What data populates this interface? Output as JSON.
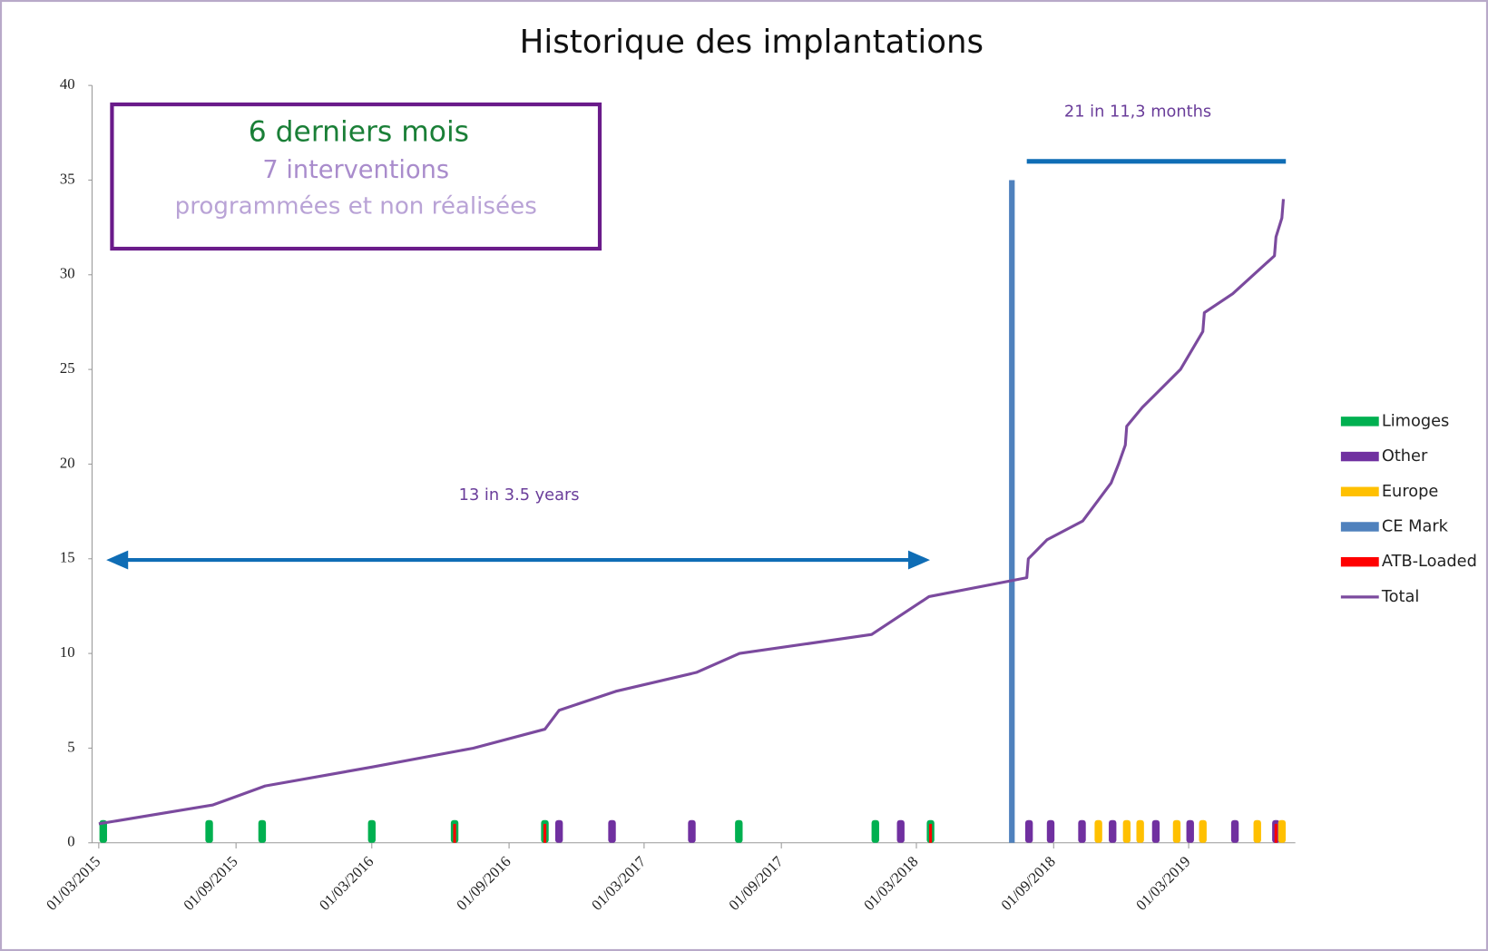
{
  "chart_data": {
    "type": "line",
    "title": "Historique des implantations",
    "xlim": [
      "2015-02-20",
      "2019-07-22"
    ],
    "ylim": [
      0,
      40
    ],
    "yticks": [
      0,
      5,
      10,
      15,
      20,
      25,
      30,
      35,
      40
    ],
    "xticks": [
      {
        "value": "2015-03-01",
        "label": "01/03/2015"
      },
      {
        "value": "2015-09-01",
        "label": "01/09/2015"
      },
      {
        "value": "2016-03-01",
        "label": "01/03/2016"
      },
      {
        "value": "2016-09-01",
        "label": "01/09/2016"
      },
      {
        "value": "2017-03-01",
        "label": "01/03/2017"
      },
      {
        "value": "2017-09-01",
        "label": "01/09/2017"
      },
      {
        "value": "2018-03-01",
        "label": "01/03/2018"
      },
      {
        "value": "2018-09-01",
        "label": "01/09/2018"
      },
      {
        "value": "2019-03-01",
        "label": "01/03/2019"
      }
    ],
    "legend": "right",
    "series": [
      {
        "name": "Limoges",
        "type": "event",
        "color": "#00b050",
        "x": [
          "2015-03-07",
          "2015-07-27",
          "2015-10-06",
          "2016-03-01",
          "2016-06-20",
          "2016-10-19",
          "2017-07-06",
          "2018-01-05",
          "2018-03-20"
        ],
        "values": [
          1,
          1,
          1,
          1,
          1,
          1,
          1,
          1,
          1
        ]
      },
      {
        "name": "Other",
        "type": "event",
        "color": "#7030a0",
        "x": [
          "2016-11-07",
          "2017-01-17",
          "2017-05-04",
          "2018-02-08",
          "2018-07-30",
          "2018-08-28",
          "2018-10-09",
          "2018-11-19",
          "2019-01-16",
          "2019-03-03",
          "2019-05-02",
          "2019-06-26"
        ],
        "values": [
          1,
          1,
          1,
          1,
          1,
          1,
          1,
          1,
          1,
          1,
          1,
          1
        ]
      },
      {
        "name": "Europe",
        "type": "event",
        "color": "#ffc000",
        "x": [
          "2018-10-31",
          "2018-12-08",
          "2018-12-26",
          "2019-02-13",
          "2019-03-20",
          "2019-06-01",
          "2019-07-04"
        ],
        "values": [
          1,
          1,
          1,
          1,
          1,
          1,
          1
        ]
      },
      {
        "name": "CE Mark",
        "type": "vline",
        "color": "#4f81bd",
        "x": [
          "2018-07-07"
        ],
        "values": [
          35
        ]
      },
      {
        "name": "ATB-Loaded",
        "type": "thin-event",
        "color": "#ff0000",
        "x": [
          "2016-06-20",
          "2016-10-19",
          "2018-03-20",
          "2019-06-26"
        ],
        "values": [
          1,
          1,
          1,
          1
        ]
      },
      {
        "name": "Total",
        "type": "line",
        "color": "#7b4a9e",
        "x": [
          "2015-03-01",
          "2015-08-01",
          "2015-10-10",
          "2016-03-01",
          "2016-07-15",
          "2016-10-19",
          "2016-11-07",
          "2017-01-22",
          "2017-05-10",
          "2017-07-07",
          "2017-12-31",
          "2018-03-18",
          "2018-07-27",
          "2018-07-29",
          "2018-08-23",
          "2018-10-10",
          "2018-11-17",
          "2018-11-27",
          "2018-12-06",
          "2018-12-08",
          "2018-12-29",
          "2019-02-18",
          "2019-03-20",
          "2019-03-22",
          "2019-04-29",
          "2019-06-24",
          "2019-06-26",
          "2019-07-04",
          "2019-07-06"
        ],
        "values": [
          1,
          2,
          3,
          4,
          5,
          6,
          7,
          8,
          9,
          10,
          11,
          13,
          14,
          15,
          16,
          17,
          19,
          20,
          21,
          22,
          23,
          25,
          27,
          28,
          29,
          31,
          32,
          33,
          34
        ]
      }
    ],
    "annotations": [
      "13 in 3.5 years",
      "21 in 11,3 months"
    ],
    "box": {
      "title": "6 derniers mois",
      "subtitle": "7 interventions",
      "note": "programmées et non réalisées"
    }
  }
}
